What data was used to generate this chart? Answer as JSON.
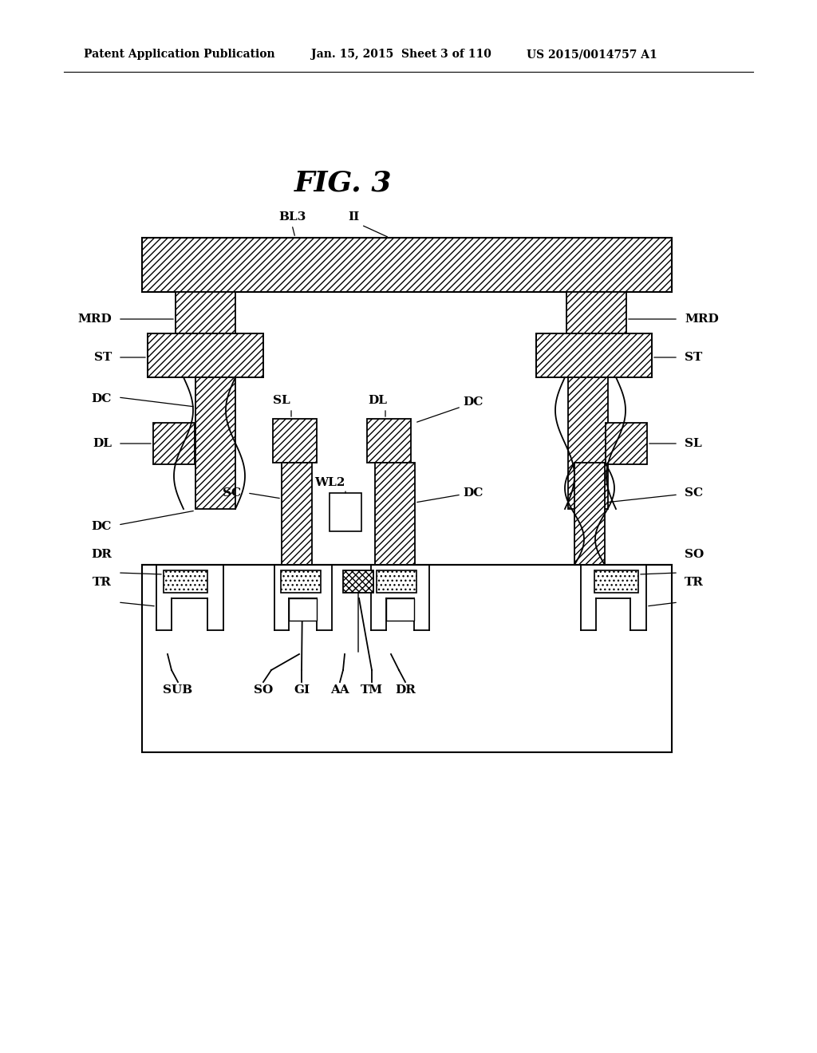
{
  "title": "FIG. 3",
  "header_left": "Patent Application Publication",
  "header_mid": "Jan. 15, 2015  Sheet 3 of 110",
  "header_right": "US 2015/0014757 A1",
  "bg_color": "#ffffff",
  "fig_width": 10.24,
  "fig_height": 13.2
}
